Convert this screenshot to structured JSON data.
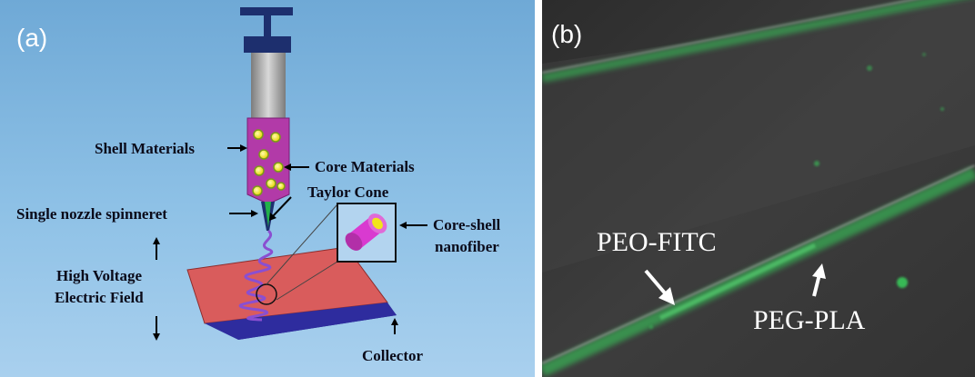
{
  "panel_a": {
    "label": "(a)",
    "labels": {
      "shell": "Shell Materials",
      "core": "Core Materials",
      "taylor": "Taylor Cone",
      "spinneret": "Single nozzle spinneret",
      "coreshell_1": "Core-shell",
      "coreshell_2": "nanofiber",
      "hv_1": "High Voltage",
      "hv_2": "Electric Field",
      "collector": "Collector"
    },
    "colors": {
      "shell": "#b23aa8",
      "core": "#f2e51a",
      "collector_top": "#d95c5c",
      "collector_base": "#26248a",
      "fiber": "#8a4fd1",
      "syringe_barrel": "#9a9a9a",
      "plunger": "#1d2f6e"
    }
  },
  "panel_b": {
    "label": "(b)",
    "labels": {
      "peo": "PEO-FITC",
      "peg": "PEG-PLA"
    },
    "colors": {
      "fiber_glow": "#37c85a",
      "background": "#3a3a3a"
    }
  }
}
